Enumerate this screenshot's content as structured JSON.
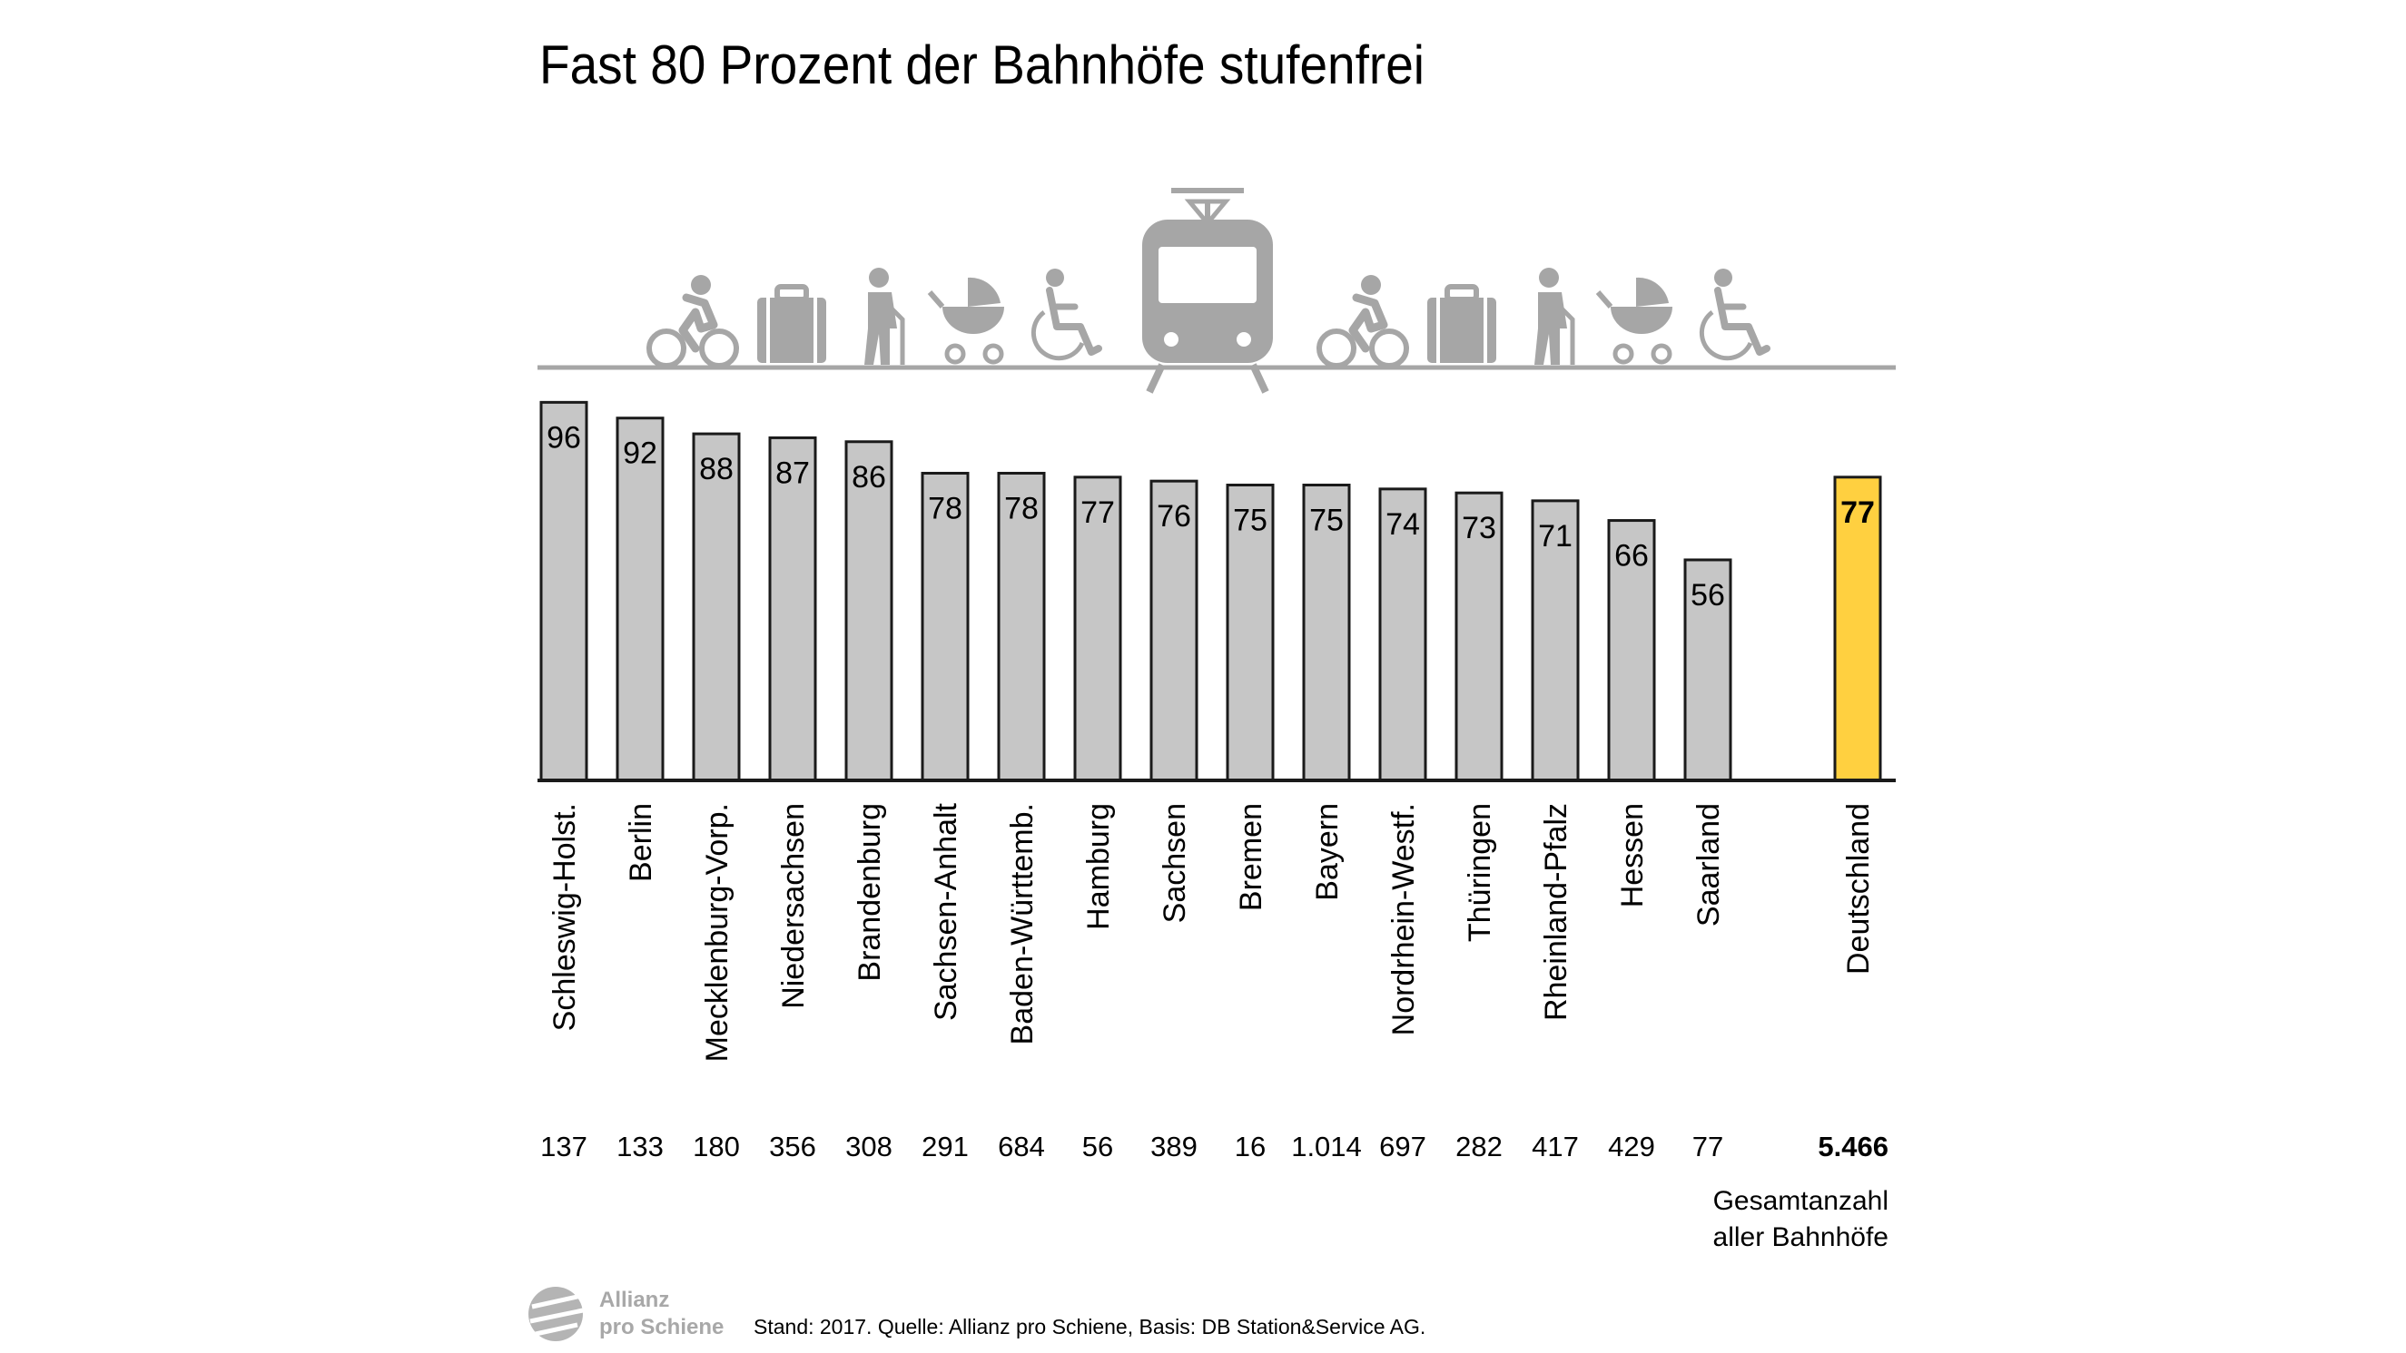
{
  "chart_data": {
    "type": "bar",
    "title": "Fast 80 Prozent der Bahnhöfe stufenfrei",
    "categories": [
      "Schleswig-Holst.",
      "Berlin",
      "Mecklenburg-Vorp.",
      "Niedersachsen",
      "Brandenburg",
      "Sachsen-Anhalt",
      "Baden-Württemb.",
      "Hamburg",
      "Sachsen",
      "Bremen",
      "Bayern",
      "Nordrhein-Westf.",
      "Thüringen",
      "Rheinland-Pfalz",
      "Hessen",
      "Saarland",
      "Deutschland"
    ],
    "values": [
      96,
      92,
      88,
      87,
      86,
      78,
      78,
      77,
      76,
      75,
      75,
      74,
      73,
      71,
      66,
      56,
      77
    ],
    "value_labels": [
      "96",
      "92",
      "88",
      "87",
      "86",
      "78",
      "78",
      "77",
      "76",
      "75",
      "75",
      "74",
      "73",
      "71",
      "66",
      "56",
      "77"
    ],
    "station_counts": [
      "137",
      "133",
      "180",
      "356",
      "308",
      "291",
      "684",
      "56",
      "389",
      "16",
      "1.014",
      "697",
      "282",
      "417",
      "429",
      "77",
      "5.466"
    ],
    "highlight_category": "Deutschland",
    "colors": {
      "bar": "#c6c6c6",
      "highlight": "#ffd040",
      "outline": "#1a1a1a",
      "icon": "#a6a6a6"
    },
    "ylim": [
      0,
      100
    ],
    "grid": false,
    "xlabel": "",
    "ylabel": ""
  },
  "icons": [
    "bicycle-icon",
    "suitcase-icon",
    "elderly-person-icon",
    "stroller-icon",
    "wheelchair-icon",
    "train-icon"
  ],
  "total_note": {
    "line1": "Gesamtanzahl",
    "line2": "aller Bahnhöfe"
  },
  "footer": {
    "source": "Stand: 2017. Quelle: Allianz pro Schiene, Basis: DB Station&Service AG."
  },
  "logo": {
    "line1": "Allianz",
    "line2": "pro Schiene"
  }
}
